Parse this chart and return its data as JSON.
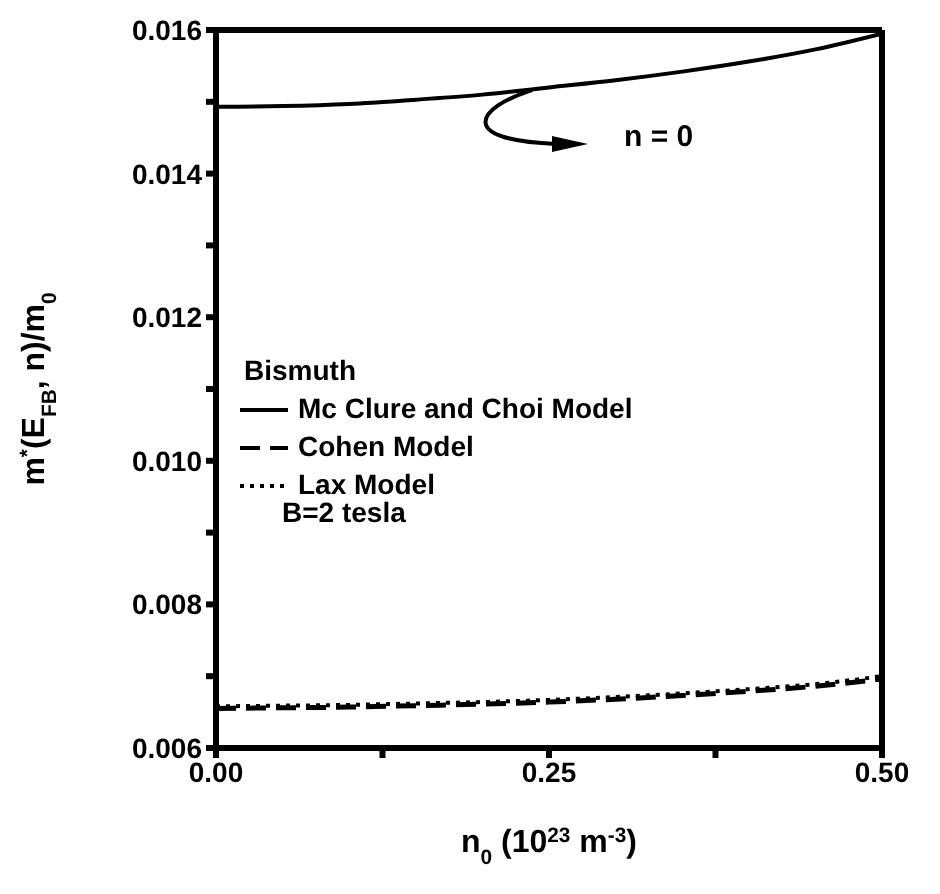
{
  "chart_data": {
    "type": "line",
    "xlabel": "n$_{0}$ (10$^{23}$ m$^{-3}$)",
    "ylabel": "m$^{*}$(E$_{FB}$, n)/m$_{0}$",
    "legend_title": "Bismuth",
    "x": [
      0,
      0.05,
      0.1,
      0.15,
      0.2,
      0.25,
      0.3,
      0.35,
      0.4,
      0.45,
      0.5
    ],
    "series": [
      {
        "name": "Mc Clure and Choi Model",
        "color": "#000000",
        "line_style": "solid",
        "values": [
          0.01493,
          0.01494,
          0.01497,
          0.01503,
          0.0151,
          0.0152,
          0.0153,
          0.01542,
          0.01556,
          0.01573,
          0.01595
        ]
      },
      {
        "name": "Cohen Model",
        "color": "#000000",
        "line_style": "dashed",
        "values": [
          0.00655,
          0.00656,
          0.00657,
          0.00659,
          0.00661,
          0.00664,
          0.00668,
          0.00673,
          0.00679,
          0.00686,
          0.00696
        ]
      },
      {
        "name": "Lax Model",
        "color": "#000000",
        "line_style": "dotted",
        "values": [
          0.00658,
          0.00659,
          0.0066,
          0.00662,
          0.00664,
          0.00667,
          0.00671,
          0.00676,
          0.00682,
          0.00689,
          0.007
        ]
      }
    ],
    "xlim": [
      0,
      0.5
    ],
    "xticks": [
      {
        "value": 0,
        "label": "0.00"
      },
      {
        "value": 0.125,
        "label": null
      },
      {
        "value": 0.25,
        "label": "0.25"
      },
      {
        "value": 0.375,
        "label": null
      },
      {
        "value": 0.5,
        "label": "0.50"
      }
    ],
    "ylim": [
      0.006,
      0.016
    ],
    "yticks": [
      0.006,
      {
        "value": 0.007,
        "label": null
      },
      0.008,
      {
        "value": 0.009,
        "label": null
      },
      {
        "value": 0.01,
        "label": "0.010"
      },
      {
        "value": 0.011,
        "label": null
      },
      0.012,
      {
        "value": 0.013,
        "label": null
      },
      0.014,
      {
        "value": 0.015,
        "label": null
      },
      0.016
    ],
    "legend": "left",
    "marker": "none",
    "annotations": [
      "n = 0",
      "B=2 tesla"
    ]
  }
}
